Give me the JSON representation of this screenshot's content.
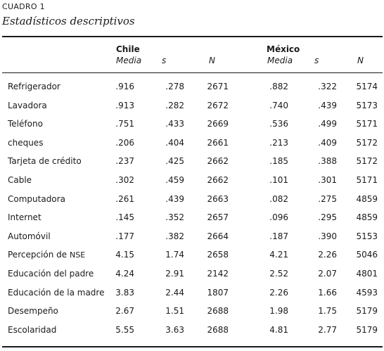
{
  "caption": "CUADRO 1",
  "subtitle": "Estadísticos descriptivos",
  "groups": {
    "chile": "Chile",
    "mexico": "México"
  },
  "subheaders": {
    "media": "Media",
    "s": "s",
    "n": "N"
  },
  "rows": [
    {
      "label": "Refrigerador",
      "cl_media": ".916",
      "cl_s": ".278",
      "cl_n": "2671",
      "mx_media": ".882",
      "mx_s": ".322",
      "mx_n": "5174"
    },
    {
      "label": "Lavadora",
      "cl_media": ".913",
      "cl_s": ".282",
      "cl_n": "2672",
      "mx_media": ".740",
      "mx_s": ".439",
      "mx_n": "5173"
    },
    {
      "label": "Teléfono",
      "cl_media": ".751",
      "cl_s": ".433",
      "cl_n": "2669",
      "mx_media": ".536",
      "mx_s": ".499",
      "mx_n": "5171"
    },
    {
      "label": "cheques",
      "cl_media": ".206",
      "cl_s": ".404",
      "cl_n": "2661",
      "mx_media": ".213",
      "mx_s": ".409",
      "mx_n": "5172"
    },
    {
      "label": "Tarjeta de crédito",
      "cl_media": ".237",
      "cl_s": ".425",
      "cl_n": "2662",
      "mx_media": ".185",
      "mx_s": ".388",
      "mx_n": "5172"
    },
    {
      "label": "Cable",
      "cl_media": ".302",
      "cl_s": ".459",
      "cl_n": "2662",
      "mx_media": ".101",
      "mx_s": ".301",
      "mx_n": "5171"
    },
    {
      "label": "Computadora",
      "cl_media": ".261",
      "cl_s": ".439",
      "cl_n": "2663",
      "mx_media": ".082",
      "mx_s": ".275",
      "mx_n": "4859"
    },
    {
      "label": "Internet",
      "cl_media": ".145",
      "cl_s": ".352",
      "cl_n": "2657",
      "mx_media": ".096",
      "mx_s": ".295",
      "mx_n": "4859"
    },
    {
      "label": "Automóvil",
      "cl_media": ".177",
      "cl_s": ".382",
      "cl_n": "2664",
      "mx_media": ".187",
      "mx_s": ".390",
      "mx_n": "5153"
    },
    {
      "label": "Percepción de",
      "label_sc": "NSE",
      "cl_media": "4.15",
      "cl_s": "1.74",
      "cl_n": "2658",
      "mx_media": "4.21",
      "mx_s": "2.26",
      "mx_n": "5046"
    },
    {
      "label": "Educación del padre",
      "cl_media": "4.24",
      "cl_s": "2.91",
      "cl_n": "2142",
      "mx_media": "2.52",
      "mx_s": "2.07",
      "mx_n": "4801"
    },
    {
      "label": "Educación de la madre",
      "cl_media": "3.83",
      "cl_s": "2.44",
      "cl_n": "1807",
      "mx_media": "2.26",
      "mx_s": "1.66",
      "mx_n": "4593"
    },
    {
      "label": "Desempeño",
      "cl_media": "2.67",
      "cl_s": "1.51",
      "cl_n": "2688",
      "mx_media": "1.98",
      "mx_s": "1.75",
      "mx_n": "5179"
    },
    {
      "label": "Escolaridad",
      "cl_media": "5.55",
      "cl_s": "3.63",
      "cl_n": "2688",
      "mx_media": "4.81",
      "mx_s": "2.77",
      "mx_n": "5179"
    }
  ]
}
